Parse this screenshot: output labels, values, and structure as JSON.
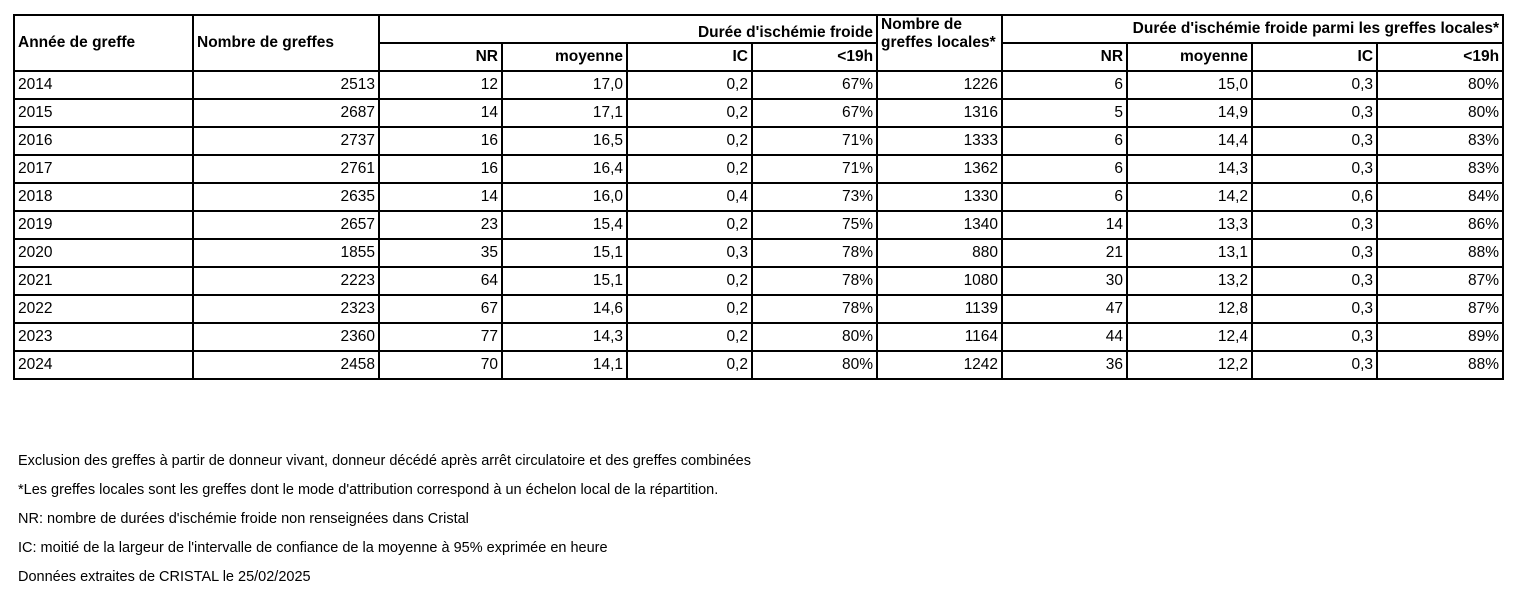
{
  "table": {
    "headers": {
      "year": "Année de greffe",
      "grafts": "Nombre de greffes",
      "group_all": "Durée d'ischémie froide",
      "local_grafts": "Nombre de greffes locales*",
      "group_local": "Durée d'ischémie froide parmi les greffes locales*",
      "sub_all": [
        "NR",
        "moyenne",
        "IC",
        "<19h"
      ],
      "sub_local": [
        "NR",
        "moyenne",
        "IC",
        "<19h"
      ]
    },
    "rows": [
      [
        "2014",
        "2513",
        "12",
        "17,0",
        "0,2",
        "67%",
        "1226",
        "6",
        "15,0",
        "0,3",
        "80%"
      ],
      [
        "2015",
        "2687",
        "14",
        "17,1",
        "0,2",
        "67%",
        "1316",
        "5",
        "14,9",
        "0,3",
        "80%"
      ],
      [
        "2016",
        "2737",
        "16",
        "16,5",
        "0,2",
        "71%",
        "1333",
        "6",
        "14,4",
        "0,3",
        "83%"
      ],
      [
        "2017",
        "2761",
        "16",
        "16,4",
        "0,2",
        "71%",
        "1362",
        "6",
        "14,3",
        "0,3",
        "83%"
      ],
      [
        "2018",
        "2635",
        "14",
        "16,0",
        "0,4",
        "73%",
        "1330",
        "6",
        "14,2",
        "0,6",
        "84%"
      ],
      [
        "2019",
        "2657",
        "23",
        "15,4",
        "0,2",
        "75%",
        "1340",
        "14",
        "13,3",
        "0,3",
        "86%"
      ],
      [
        "2020",
        "1855",
        "35",
        "15,1",
        "0,3",
        "78%",
        "880",
        "21",
        "13,1",
        "0,3",
        "88%"
      ],
      [
        "2021",
        "2223",
        "64",
        "15,1",
        "0,2",
        "78%",
        "1080",
        "30",
        "13,2",
        "0,3",
        "87%"
      ],
      [
        "2022",
        "2323",
        "67",
        "14,6",
        "0,2",
        "78%",
        "1139",
        "47",
        "12,8",
        "0,3",
        "87%"
      ],
      [
        "2023",
        "2360",
        "77",
        "14,3",
        "0,2",
        "80%",
        "1164",
        "44",
        "12,4",
        "0,3",
        "89%"
      ],
      [
        "2024",
        "2458",
        "70",
        "14,1",
        "0,2",
        "80%",
        "1242",
        "36",
        "12,2",
        "0,3",
        "88%"
      ]
    ]
  },
  "notes": [
    "Exclusion des greffes à partir de donneur vivant, donneur décédé après arrêt circulatoire et des greffes combinées",
    "*Les greffes locales sont les greffes dont le mode d'attribution correspond à un échelon local de la répartition.",
    "NR: nombre de durées d'ischémie froide non renseignées dans Cristal",
    "IC: moitié de la largeur de l'intervalle de confiance de la moyenne à 95% exprimée en heure",
    "Données extraites de CRISTAL le 25/02/2025"
  ]
}
